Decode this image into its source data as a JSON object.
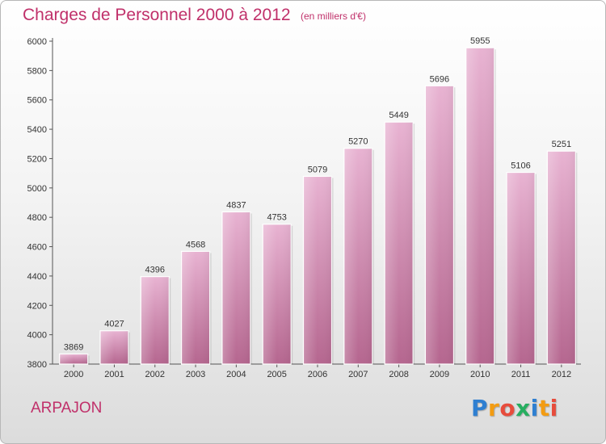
{
  "header": {
    "title": "Charges de Personnel 2000 à 2012",
    "subtitle": "(en milliers d'€)"
  },
  "footer": {
    "town": "ARPAJON",
    "logo_letters": [
      {
        "ch": "P",
        "color": "#2f7fd1"
      },
      {
        "ch": "r",
        "color": "#f39c12"
      },
      {
        "ch": "o",
        "color": "#e74c3c"
      },
      {
        "ch": "x",
        "color": "#27ae60"
      },
      {
        "ch": "i",
        "color": "#2f7fd1"
      },
      {
        "ch": "t",
        "color": "#f39c12"
      },
      {
        "ch": "i",
        "color": "#e74c3c"
      }
    ]
  },
  "chart_data": {
    "type": "bar",
    "categories": [
      "2000",
      "2001",
      "2002",
      "2003",
      "2004",
      "2005",
      "2006",
      "2007",
      "2008",
      "2009",
      "2010",
      "2011",
      "2012"
    ],
    "values": [
      3869,
      4027,
      4396,
      4568,
      4837,
      4753,
      5079,
      5270,
      5449,
      5696,
      5955,
      5106,
      5251
    ],
    "title": "Charges de Personnel 2000 à 2012",
    "subtitle": "(en milliers d'€)",
    "ylim": [
      3800,
      6000
    ],
    "yticks": [
      3800,
      4000,
      4200,
      4400,
      4600,
      4800,
      5000,
      5200,
      5400,
      5600,
      5800,
      6000
    ],
    "grid": false,
    "bar_color_top": "#e8b3d2",
    "bar_color_bottom": "#b5668f"
  }
}
